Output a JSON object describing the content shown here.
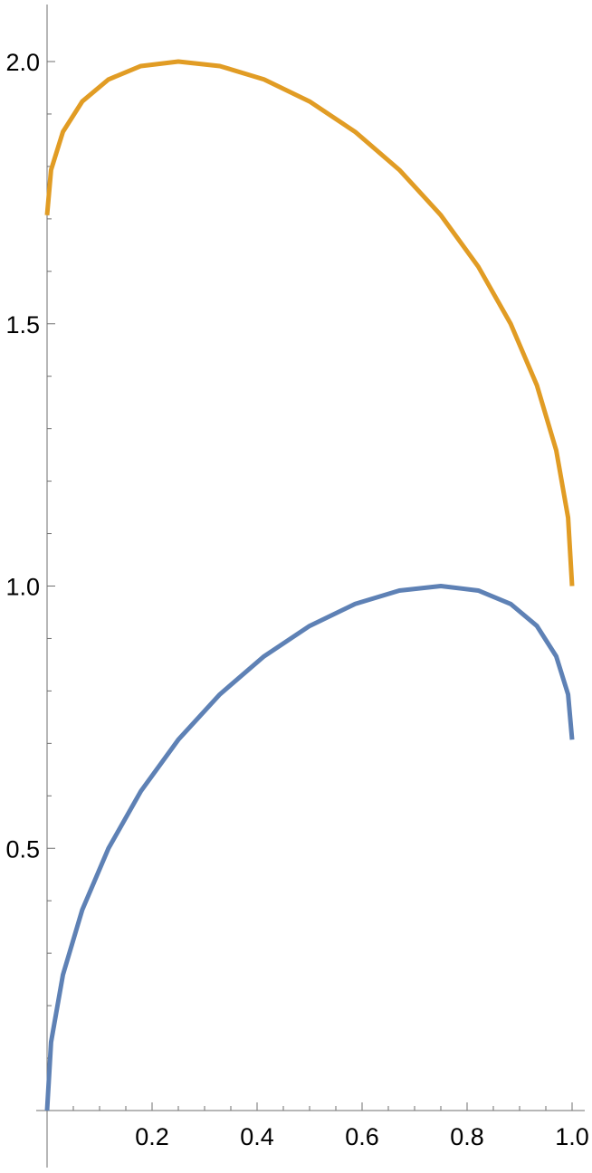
{
  "chart_data": {
    "type": "line",
    "title": "",
    "xlabel": "",
    "ylabel": "",
    "xlim": [
      0,
      1.0
    ],
    "ylim": [
      0,
      2.0
    ],
    "x_ticks": [
      "0.2",
      "0.4",
      "0.6",
      "0.8",
      "1.0"
    ],
    "y_ticks": [
      "0.5",
      "1.0",
      "1.5",
      "2.0"
    ],
    "grid": false,
    "legend": "none",
    "series": [
      {
        "color": "#5e81b5",
        "x": [
          0.0,
          0.0076,
          0.0302,
          0.067,
          0.117,
          0.1786,
          0.25,
          0.329,
          0.4132,
          0.5,
          0.5868,
          0.671,
          0.75,
          0.8214,
          0.883,
          0.933,
          0.9698,
          0.9924,
          1.0
        ],
        "y": [
          0.0,
          0.1305,
          0.2588,
          0.3827,
          0.5,
          0.6088,
          0.7071,
          0.7934,
          0.866,
          0.9239,
          0.9659,
          0.9914,
          1.0,
          0.9914,
          0.9659,
          0.9239,
          0.866,
          0.7934,
          0.7071
        ]
      },
      {
        "color": "#e19c24",
        "x": [
          1.0,
          0.9924,
          0.9698,
          0.933,
          0.883,
          0.8214,
          0.75,
          0.671,
          0.5868,
          0.5,
          0.4132,
          0.329,
          0.25,
          0.1786,
          0.117,
          0.067,
          0.0302,
          0.0076,
          0.0
        ],
        "y": [
          1.0,
          1.1305,
          1.2588,
          1.3827,
          1.5,
          1.6088,
          1.7071,
          1.7934,
          1.866,
          1.9239,
          1.9659,
          1.9914,
          2.0,
          1.9914,
          1.9659,
          1.9239,
          1.866,
          1.7934,
          1.7071
        ]
      }
    ]
  }
}
